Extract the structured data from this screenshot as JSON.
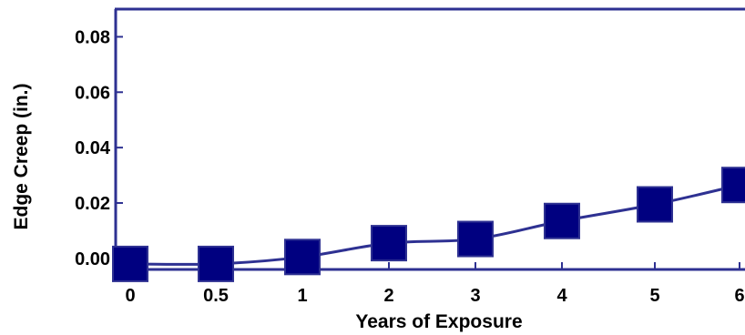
{
  "chart_data": {
    "type": "line",
    "xlabel": "Years of Exposure",
    "ylabel": "Edge Creep (in.)",
    "x_tick_labels": [
      "0",
      "0.5",
      "1",
      "2",
      "3",
      "4",
      "5",
      "6"
    ],
    "y_tick_labels": [
      "0.00",
      "0.02",
      "0.04",
      "0.06",
      "0.08"
    ],
    "ylim": [
      -0.004,
      0.09
    ],
    "grid": false,
    "series": [
      {
        "marker": "square",
        "x": [
          "0",
          "0.5",
          "1",
          "2",
          "3",
          "4",
          "5",
          "6"
        ],
        "values": [
          -0.002,
          -0.002,
          0.0005,
          0.0055,
          0.007,
          0.0135,
          0.0195,
          0.0265
        ]
      }
    ],
    "colors": {
      "axis": "#2E3192",
      "line": "#2E3192",
      "marker_fill": "#000080",
      "marker_stroke": "#2E3192"
    }
  }
}
